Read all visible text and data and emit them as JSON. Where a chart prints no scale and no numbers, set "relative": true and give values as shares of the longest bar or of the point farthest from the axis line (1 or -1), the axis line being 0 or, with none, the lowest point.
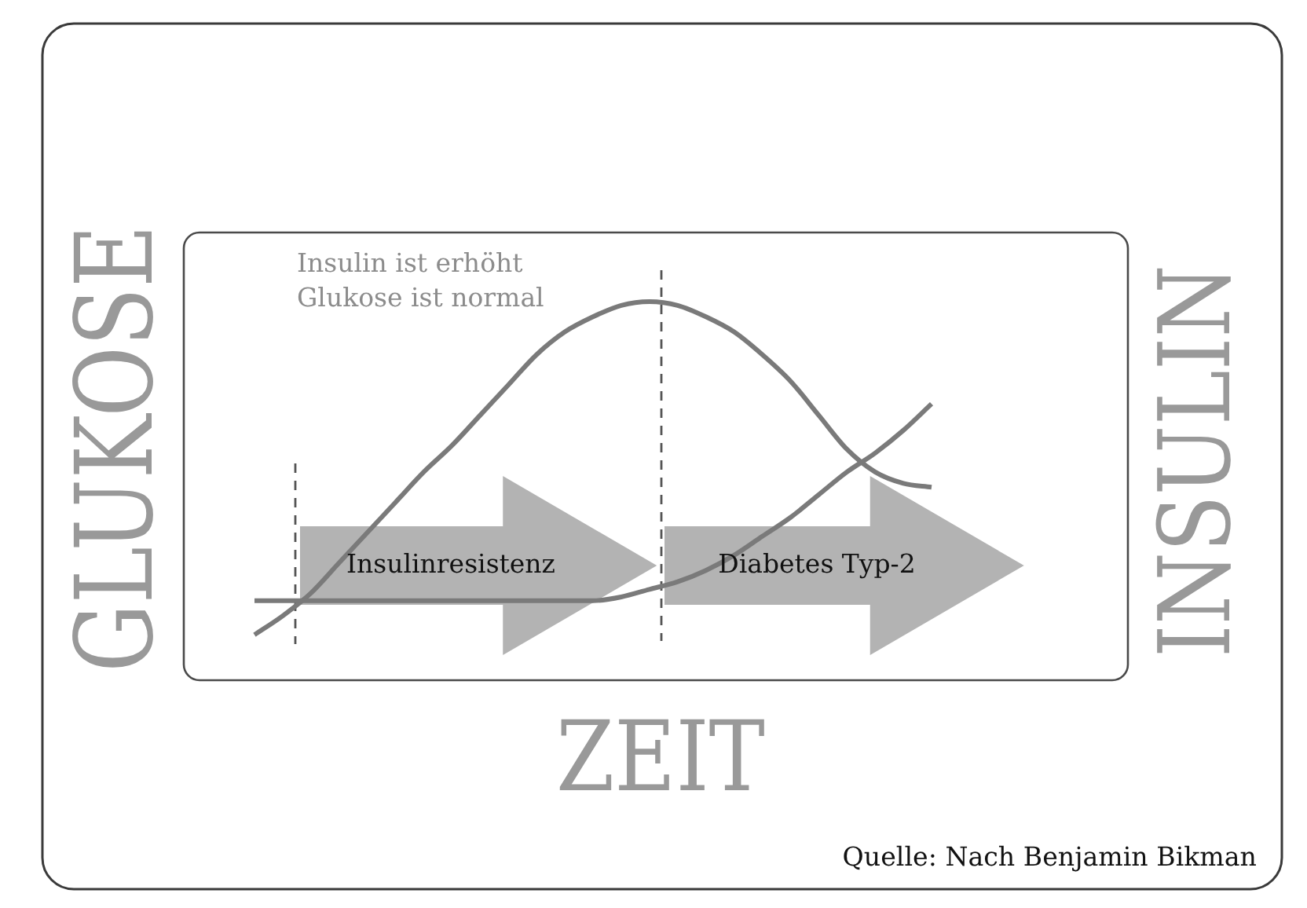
{
  "chart_data": {
    "type": "line",
    "relative": true,
    "xlabel": "ZEIT",
    "ylabel": "GLUKOSE",
    "y2label": "INSULIN",
    "marker": "none",
    "line_style": "solid",
    "categories": [
      null,
      null,
      null,
      null,
      null,
      null,
      null,
      null,
      null,
      null,
      null,
      null,
      null,
      null,
      null,
      null,
      null,
      null,
      null,
      null,
      null,
      null,
      null,
      null,
      null
    ],
    "series": [
      {
        "color": "#7a7a7a",
        "values": [
          0.21,
          0.21,
          0.21,
          0.21,
          0.21,
          0.21,
          0.21,
          0.21,
          0.21,
          0.21,
          0.21,
          0.21,
          0.21,
          0.22,
          0.24,
          0.26,
          0.29,
          0.33,
          0.38,
          0.43,
          0.49,
          0.55,
          0.6,
          0.66,
          0.73
        ]
      },
      {
        "color": "#7a7a7a",
        "values": [
          0.12,
          0.17,
          0.23,
          0.31,
          0.39,
          0.47,
          0.55,
          0.62,
          0.7,
          0.78,
          0.86,
          0.92,
          0.96,
          0.99,
          1,
          0.99,
          0.96,
          0.92,
          0.86,
          0.79,
          0.7,
          0.61,
          0.55,
          0.52,
          0.51
        ]
      }
    ],
    "annotations": [
      "Insulin ist erhöht\nGlukose ist normal",
      "Insulinresistenz",
      "Diabetes Typ-2",
      "Quelle: Nach Benjamin Bikman"
    ]
  }
}
